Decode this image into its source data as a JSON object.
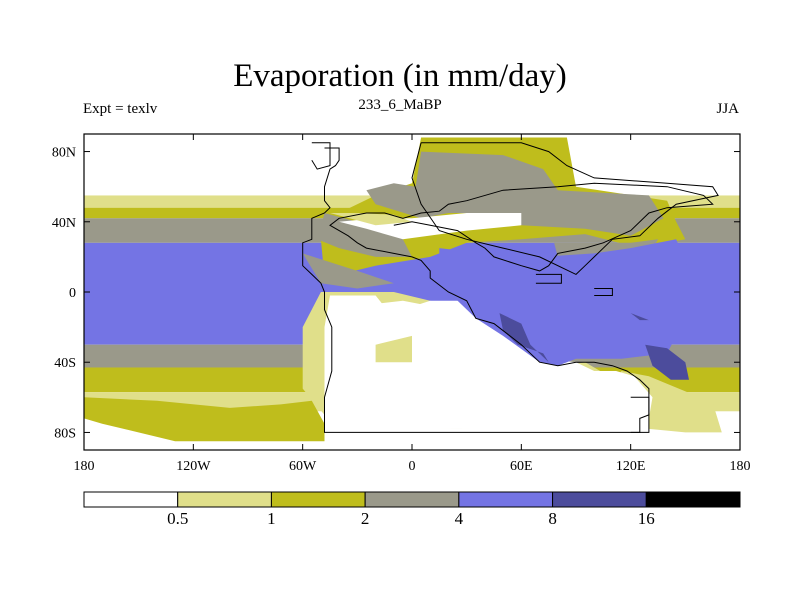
{
  "chart_data": {
    "type": "heatmap",
    "title": "Evaporation (in mm/day)",
    "left_string": "Expt = texlv",
    "center_string": "233_6_MaBP",
    "right_string": "JJA",
    "x_ticks": [
      "180",
      "120W",
      "60W",
      "0",
      "60E",
      "120E",
      "180"
    ],
    "y_ticks": [
      "80N",
      "40N",
      "0",
      "40S",
      "80S"
    ],
    "xlim": [
      -180,
      180
    ],
    "ylim": [
      -90,
      90
    ],
    "colorbar": {
      "levels": [
        "0.5",
        "1",
        "2",
        "4",
        "8",
        "16"
      ],
      "colors": [
        "#ffffff",
        "#e0df8a",
        "#bfbd1c",
        "#9a998a",
        "#7474e4",
        "#4c4c9c",
        "#000000"
      ]
    },
    "bands": [
      {
        "lat_top": 90,
        "lat_bottom": 55,
        "level": 0
      },
      {
        "lat_top": 55,
        "lat_bottom": 48,
        "level": 1
      },
      {
        "lat_top": 48,
        "lat_bottom": 42,
        "level": 2
      },
      {
        "lat_top": 42,
        "lat_bottom": 28,
        "level": 3
      },
      {
        "lat_top": 28,
        "lat_bottom": -30,
        "level": 4
      },
      {
        "lat_top": -30,
        "lat_bottom": -43,
        "level": 3
      },
      {
        "lat_top": -43,
        "lat_bottom": -57,
        "level": 2
      },
      {
        "lat_top": -57,
        "lat_bottom": -68,
        "level": 1
      },
      {
        "lat_top": -68,
        "lat_bottom": -90,
        "level": 0
      }
    ],
    "regions": [
      {
        "level": 1,
        "points": [
          [
            -60,
            -55
          ],
          [
            -48,
            -70
          ],
          [
            -25,
            -77
          ],
          [
            25,
            -78
          ],
          [
            60,
            -77
          ],
          [
            88,
            -77
          ],
          [
            100,
            -62
          ],
          [
            115,
            -45
          ],
          [
            130,
            -48
          ],
          [
            165,
            -63
          ],
          [
            170,
            -80
          ],
          [
            150,
            -80
          ],
          [
            130,
            -78
          ],
          [
            130,
            -62
          ],
          [
            115,
            -52
          ],
          [
            95,
            -40
          ],
          [
            80,
            -42
          ],
          [
            60,
            -35
          ],
          [
            35,
            -20
          ],
          [
            20,
            -12
          ],
          [
            10,
            -5
          ],
          [
            -10,
            0
          ],
          [
            -50,
            0
          ],
          [
            -60,
            -20
          ]
        ]
      },
      {
        "level": 0,
        "points": [
          [
            -48,
            -40
          ],
          [
            -48,
            -78
          ],
          [
            35,
            -78
          ],
          [
            60,
            -77
          ],
          [
            100,
            -77
          ],
          [
            100,
            -68
          ],
          [
            90,
            -60
          ],
          [
            75,
            -35
          ],
          [
            40,
            -20
          ],
          [
            20,
            -15
          ],
          [
            10,
            -8
          ],
          [
            -5,
            -5
          ],
          [
            -30,
            -8
          ],
          [
            -48,
            -20
          ]
        ]
      },
      {
        "level": 0,
        "points": [
          [
            -5,
            -78
          ],
          [
            120,
            -78
          ],
          [
            130,
            -72
          ],
          [
            132,
            -60
          ],
          [
            122,
            -48
          ],
          [
            112,
            -45
          ],
          [
            100,
            -45
          ],
          [
            90,
            -40
          ],
          [
            72,
            -38
          ],
          [
            48,
            -22
          ],
          [
            36,
            -15
          ],
          [
            26,
            -5
          ],
          [
            10,
            -5
          ],
          [
            -5,
            -10
          ],
          [
            -40,
            -15
          ],
          [
            -48,
            -20
          ]
        ]
      },
      {
        "level": 2,
        "points": [
          [
            -55,
            -62
          ],
          [
            -48,
            -75
          ],
          [
            -48,
            -80
          ],
          [
            -48,
            -85
          ],
          [
            -130,
            -85
          ],
          [
            -170,
            -75
          ],
          [
            -180,
            -72
          ],
          [
            -180,
            -60
          ],
          [
            -140,
            -62
          ],
          [
            -100,
            -66
          ],
          [
            -72,
            -64
          ]
        ]
      },
      {
        "level": 2,
        "points": [
          [
            5,
            88
          ],
          [
            85,
            88
          ],
          [
            90,
            60
          ],
          [
            140,
            52
          ],
          [
            145,
            40
          ],
          [
            150,
            30
          ],
          [
            125,
            25
          ],
          [
            95,
            33
          ],
          [
            60,
            30
          ],
          [
            30,
            28
          ],
          [
            10,
            20
          ],
          [
            -20,
            15
          ],
          [
            -48,
            8
          ],
          [
            -50,
            30
          ],
          [
            -40,
            45
          ],
          [
            -20,
            55
          ],
          [
            0,
            62
          ]
        ]
      },
      {
        "level": 3,
        "points": [
          [
            5,
            80
          ],
          [
            50,
            78
          ],
          [
            72,
            70
          ],
          [
            80,
            58
          ],
          [
            130,
            55
          ],
          [
            138,
            42
          ],
          [
            120,
            32
          ],
          [
            95,
            36
          ],
          [
            60,
            38
          ],
          [
            35,
            45
          ],
          [
            20,
            45
          ],
          [
            5,
            42
          ],
          [
            -20,
            50
          ],
          [
            -25,
            58
          ],
          [
            -10,
            62
          ],
          [
            2,
            60
          ]
        ]
      },
      {
        "level": 3,
        "points": [
          [
            -48,
            45
          ],
          [
            -30,
            40
          ],
          [
            -15,
            35
          ],
          [
            -5,
            30
          ],
          [
            0,
            20
          ],
          [
            -20,
            20
          ],
          [
            -40,
            25
          ],
          [
            -52,
            30
          ]
        ]
      },
      {
        "level": 3,
        "points": [
          [
            78,
            28
          ],
          [
            120,
            28
          ],
          [
            135,
            30
          ],
          [
            120,
            0
          ],
          [
            100,
            10
          ],
          [
            80,
            20
          ]
        ]
      },
      {
        "level": 3,
        "points": [
          [
            -60,
            22
          ],
          [
            -30,
            12
          ],
          [
            -10,
            5
          ],
          [
            -30,
            2
          ],
          [
            -50,
            5
          ]
        ]
      },
      {
        "level": 4,
        "points": [
          [
            15,
            25
          ],
          [
            40,
            22
          ],
          [
            70,
            20
          ],
          [
            100,
            22
          ],
          [
            120,
            25
          ],
          [
            145,
            30
          ],
          [
            152,
            12
          ],
          [
            150,
            -15
          ],
          [
            140,
            -35
          ],
          [
            115,
            -38
          ],
          [
            90,
            -38
          ],
          [
            80,
            -42
          ],
          [
            70,
            -40
          ],
          [
            50,
            -25
          ],
          [
            35,
            -15
          ],
          [
            25,
            -5
          ],
          [
            20,
            5
          ],
          [
            15,
            15
          ]
        ]
      },
      {
        "level": 5,
        "points": [
          [
            48,
            -12
          ],
          [
            60,
            -18
          ],
          [
            65,
            -30
          ],
          [
            75,
            -40
          ],
          [
            72,
            -35
          ],
          [
            58,
            -30
          ],
          [
            50,
            -22
          ]
        ]
      },
      {
        "level": 5,
        "points": [
          [
            112,
            -7
          ],
          [
            120,
            -12
          ],
          [
            125,
            -16
          ],
          [
            130,
            -16
          ],
          [
            120,
            -12
          ]
        ]
      },
      {
        "level": 5,
        "points": [
          [
            128,
            -30
          ],
          [
            140,
            -32
          ],
          [
            150,
            -40
          ],
          [
            152,
            -50
          ],
          [
            142,
            -50
          ],
          [
            132,
            -42
          ]
        ]
      },
      {
        "level": 0,
        "points": [
          [
            -40,
            40
          ],
          [
            -25,
            36
          ],
          [
            -5,
            30
          ],
          [
            30,
            35
          ],
          [
            60,
            38
          ],
          [
            60,
            45
          ],
          [
            30,
            45
          ],
          [
            0,
            42
          ],
          [
            -20,
            42
          ]
        ]
      },
      {
        "level": 0,
        "points": [
          [
            -45,
            -2
          ],
          [
            -20,
            -2
          ],
          [
            -10,
            -15
          ],
          [
            -30,
            -25
          ],
          [
            -48,
            -20
          ]
        ]
      },
      {
        "level": 1,
        "points": [
          [
            -45,
            45
          ],
          [
            -30,
            45
          ],
          [
            -10,
            44
          ],
          [
            0,
            40
          ],
          [
            -20,
            38
          ]
        ]
      },
      {
        "level": 1,
        "points": [
          [
            -20,
            -30
          ],
          [
            0,
            -25
          ],
          [
            0,
            -40
          ],
          [
            -20,
            -40
          ]
        ]
      },
      {
        "level": 0,
        "points": [
          [
            -170,
            60
          ],
          [
            -110,
            62
          ],
          [
            -60,
            62
          ],
          [
            -30,
            70
          ],
          [
            -10,
            80
          ],
          [
            -10,
            90
          ],
          [
            -180,
            90
          ],
          [
            -180,
            62
          ]
        ]
      }
    ],
    "land_outlines": [
      [
        [
          -48,
          82
        ],
        [
          -40,
          82
        ],
        [
          -40,
          75
        ],
        [
          -42,
          72
        ],
        [
          -45,
          70
        ],
        [
          -48,
          60
        ],
        [
          -48,
          52
        ],
        [
          -45,
          48
        ],
        [
          -48,
          45
        ],
        [
          -55,
          42
        ],
        [
          -55,
          30
        ],
        [
          -60,
          28
        ],
        [
          -60,
          15
        ],
        [
          -55,
          10
        ],
        [
          -50,
          5
        ],
        [
          -48,
          0
        ],
        [
          -48,
          -10
        ],
        [
          -44,
          -20
        ],
        [
          -44,
          -45
        ],
        [
          -48,
          -60
        ],
        [
          -48,
          -80
        ],
        [
          125,
          -80
        ],
        [
          125,
          -72
        ],
        [
          130,
          -70
        ],
        [
          130,
          -55
        ],
        [
          125,
          -50
        ],
        [
          118,
          -45
        ],
        [
          110,
          -42
        ],
        [
          100,
          -40
        ],
        [
          90,
          -40
        ],
        [
          80,
          -42
        ],
        [
          70,
          -40
        ],
        [
          60,
          -30
        ],
        [
          45,
          -18
        ],
        [
          35,
          -15
        ],
        [
          30,
          -5
        ],
        [
          20,
          0
        ],
        [
          10,
          8
        ],
        [
          10,
          12
        ],
        [
          5,
          18
        ],
        [
          0,
          20
        ],
        [
          -10,
          22
        ],
        [
          -25,
          25
        ],
        [
          -30,
          28
        ],
        [
          -35,
          32
        ],
        [
          -40,
          35
        ],
        [
          -45,
          38
        ],
        [
          -40,
          42
        ],
        [
          -25,
          45
        ],
        [
          -15,
          45
        ],
        [
          -5,
          42
        ],
        [
          5,
          45
        ],
        [
          15,
          46
        ],
        [
          20,
          50
        ],
        [
          30,
          52
        ],
        [
          50,
          58
        ],
        [
          80,
          60
        ],
        [
          100,
          62
        ],
        [
          140,
          60
        ],
        [
          160,
          55
        ],
        [
          165,
          50
        ],
        [
          140,
          48
        ],
        [
          130,
          45
        ],
        [
          120,
          35
        ],
        [
          105,
          28
        ],
        [
          95,
          25
        ],
        [
          85,
          23
        ],
        [
          80,
          22
        ],
        [
          75,
          15
        ],
        [
          70,
          12
        ],
        [
          60,
          15
        ],
        [
          45,
          20
        ],
        [
          40,
          25
        ],
        [
          35,
          28
        ],
        [
          25,
          35
        ],
        [
          10,
          38
        ],
        [
          0,
          40
        ],
        [
          -10,
          38
        ]
      ],
      [
        [
          5,
          85
        ],
        [
          60,
          85
        ],
        [
          75,
          80
        ],
        [
          85,
          72
        ],
        [
          100,
          65
        ],
        [
          140,
          62
        ],
        [
          165,
          60
        ],
        [
          168,
          55
        ],
        [
          145,
          50
        ],
        [
          135,
          42
        ],
        [
          125,
          32
        ],
        [
          110,
          30
        ],
        [
          100,
          20
        ],
        [
          95,
          15
        ],
        [
          90,
          10
        ],
        [
          70,
          20
        ],
        [
          50,
          25
        ],
        [
          30,
          30
        ],
        [
          15,
          35
        ],
        [
          5,
          50
        ],
        [
          0,
          65
        ],
        [
          5,
          85
        ]
      ],
      [
        [
          -55,
          85
        ],
        [
          -45,
          85
        ],
        [
          -45,
          72
        ],
        [
          -52,
          70
        ],
        [
          -55,
          75
        ]
      ],
      [
        [
          68,
          10
        ],
        [
          82,
          10
        ],
        [
          82,
          5
        ],
        [
          68,
          5
        ]
      ],
      [
        [
          100,
          2
        ],
        [
          110,
          2
        ],
        [
          110,
          -2
        ],
        [
          100,
          -2
        ]
      ],
      [
        [
          120,
          -60
        ],
        [
          130,
          -60
        ],
        [
          130,
          -80
        ],
        [
          120,
          -80
        ]
      ]
    ]
  }
}
